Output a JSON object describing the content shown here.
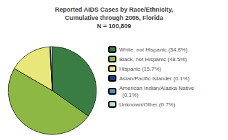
{
  "chart_data": {
    "type": "pie",
    "title": "Reported AIDS Cases by Race/Ethnicity,\nCumulative through 2005, Florida\nN = 100,809",
    "categories": [
      "White, not Hispanic (34.8%)",
      "Black, not Hispanic (48.5%)",
      "Hispanic (15.7%)",
      "Asian/Pacific Islander (0.1%)",
      "American Indian/Alaska Native\n  (0.1%)",
      "Unknown/Other (0.7%)"
    ],
    "values": [
      34.8,
      48.5,
      15.7,
      0.1,
      0.1,
      0.7
    ],
    "colors": [
      "#3a7d44",
      "#8db843",
      "#e8e87a",
      "#1f3f7a",
      "#4f8fc0",
      "#b8dce8"
    ],
    "legend": "right"
  }
}
